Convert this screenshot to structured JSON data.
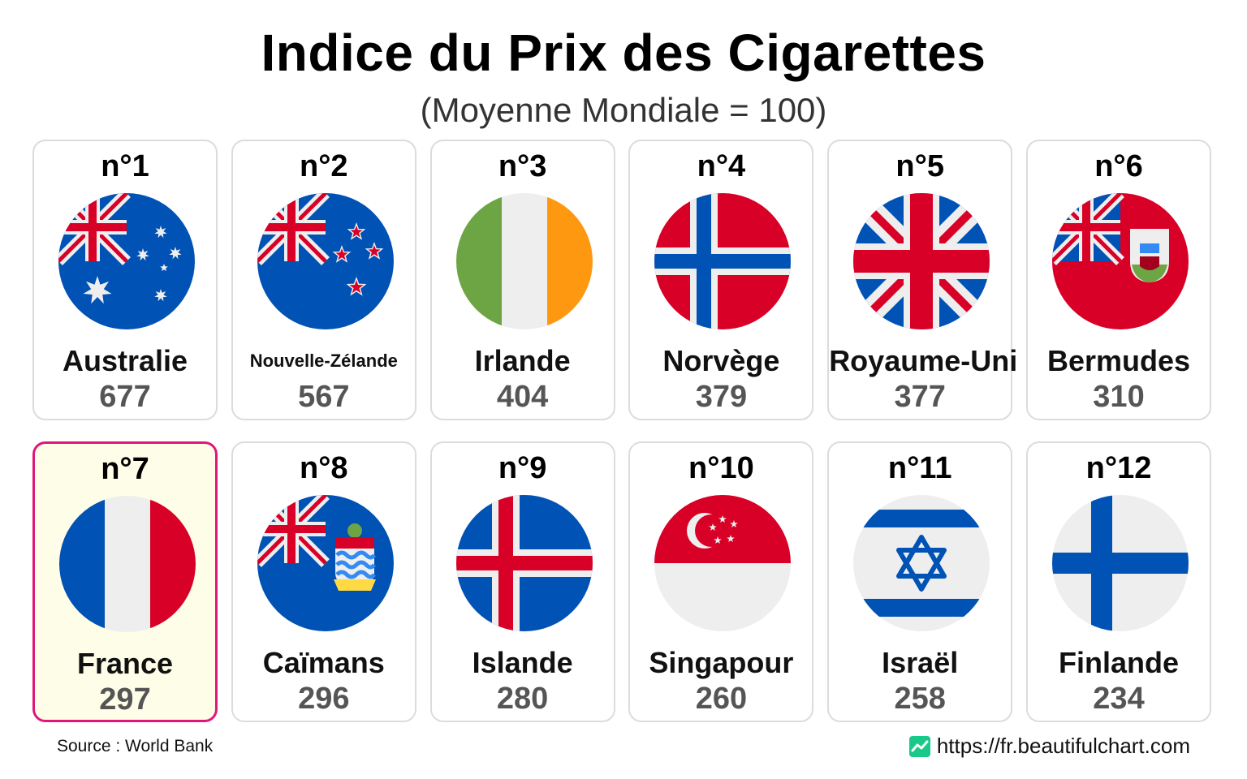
{
  "chart_data": {
    "type": "table",
    "title": "Indice du Prix des Cigarettes",
    "subtitle": "(Moyenne Mondiale = 100)",
    "highlight": "France",
    "highlight_color": "#e0177a",
    "entries": [
      {
        "rank": "n°1",
        "country": "Australie",
        "value": 677,
        "flag": "australia-flag-icon"
      },
      {
        "rank": "n°2",
        "country": "Nouvelle-Zélande",
        "value": 567,
        "flag": "new-zealand-flag-icon"
      },
      {
        "rank": "n°3",
        "country": "Irlande",
        "value": 404,
        "flag": "ireland-flag-icon"
      },
      {
        "rank": "n°4",
        "country": "Norvège",
        "value": 379,
        "flag": "norway-flag-icon"
      },
      {
        "rank": "n°5",
        "country": "Royaume-Uni",
        "value": 377,
        "flag": "united-kingdom-flag-icon"
      },
      {
        "rank": "n°6",
        "country": "Bermudes",
        "value": 310,
        "flag": "bermuda-flag-icon"
      },
      {
        "rank": "n°7",
        "country": "France",
        "value": 297,
        "flag": "france-flag-icon"
      },
      {
        "rank": "n°8",
        "country": "Caïmans",
        "value": 296,
        "flag": "cayman-islands-flag-icon"
      },
      {
        "rank": "n°9",
        "country": "Islande",
        "value": 280,
        "flag": "iceland-flag-icon"
      },
      {
        "rank": "n°10",
        "country": "Singapour",
        "value": 260,
        "flag": "singapore-flag-icon"
      },
      {
        "rank": "n°11",
        "country": "Israël",
        "value": 258,
        "flag": "israel-flag-icon"
      },
      {
        "rank": "n°12",
        "country": "Finlande",
        "value": 234,
        "flag": "finland-flag-icon"
      }
    ]
  },
  "footer": {
    "source": "Source : World Bank",
    "site": "https://fr.beautifulchart.com"
  }
}
